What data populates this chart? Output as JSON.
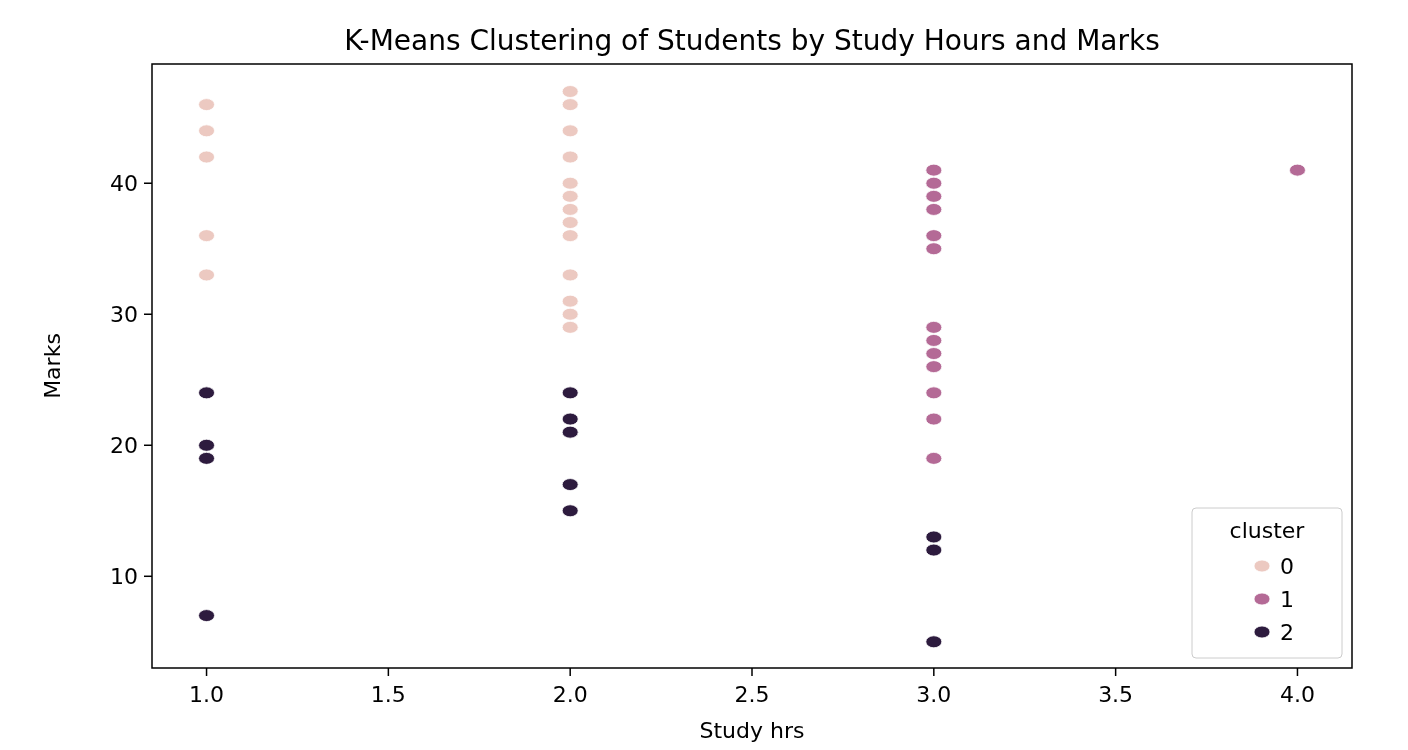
{
  "chart_data": {
    "type": "scatter",
    "title": "K-Means Clustering of Students by Study Hours and Marks",
    "xlabel": "Study hrs",
    "ylabel": "Marks",
    "legend_title": "cluster",
    "legend": "bottom right",
    "marker": "circle",
    "grid": false,
    "xlim": [
      0.85,
      4.15
    ],
    "xticks": [
      {
        "value": 1,
        "label": "1.0"
      },
      {
        "value": 1.5,
        "label": "1.5"
      },
      {
        "value": 2,
        "label": "2.0"
      },
      {
        "value": 2.5,
        "label": "2.5"
      },
      {
        "value": 3,
        "label": "3.0"
      },
      {
        "value": 3.5,
        "label": "3.5"
      },
      {
        "value": 4,
        "label": "4.0"
      }
    ],
    "ylim": [
      3.0,
      49.1
    ],
    "yticks": [
      10,
      20,
      30,
      40
    ],
    "series": [
      {
        "name": "0",
        "color": "#ecc9c1",
        "x": [
          1,
          1,
          1,
          1,
          1,
          2,
          2,
          2,
          2,
          2,
          2,
          2,
          2,
          2,
          2,
          2,
          2,
          2
        ],
        "values": [
          46,
          44,
          42,
          36,
          33,
          47,
          46,
          44,
          42,
          40,
          39,
          38,
          37,
          36,
          33,
          31,
          30,
          29
        ]
      },
      {
        "name": "1",
        "color": "#b46a96",
        "x": [
          3,
          3,
          3,
          3,
          3,
          3,
          3,
          3,
          3,
          3,
          3,
          3,
          3,
          4
        ],
        "values": [
          41,
          40,
          39,
          38,
          36,
          35,
          29,
          28,
          27,
          26,
          24,
          22,
          19,
          41
        ]
      },
      {
        "name": "2",
        "color": "#2d1b3e",
        "x": [
          1,
          1,
          1,
          1,
          2,
          2,
          2,
          2,
          2,
          3,
          3,
          3
        ],
        "values": [
          24,
          20,
          19,
          7,
          24,
          22,
          21,
          17,
          15,
          13,
          12,
          5
        ]
      }
    ]
  }
}
